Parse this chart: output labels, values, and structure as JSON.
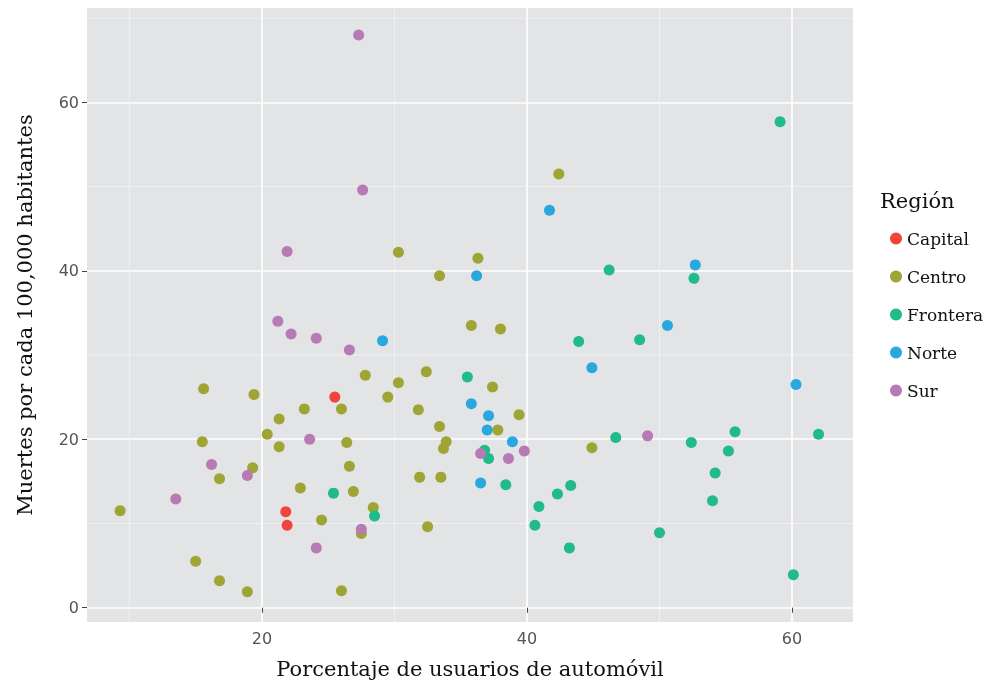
{
  "chart_data": {
    "type": "scatter",
    "xlabel": "Porcentaje de usuarios de automóvil",
    "ylabel": "Muertes por cada 100,000 habitantes",
    "legend_title": "Región",
    "legend": "right",
    "grid": true,
    "marker": "circle",
    "xlim": [
      6.8,
      64.6
    ],
    "ylim": [
      -1.7,
      71.2
    ],
    "xticks": [
      20,
      40,
      60
    ],
    "yticks": [
      0,
      20,
      40,
      60
    ],
    "series": [
      {
        "name": "Capital",
        "color": "#f0453f",
        "x": [
          25.5,
          21.8,
          21.9
        ],
        "values": [
          25.0,
          11.4,
          9.8
        ]
      },
      {
        "name": "Centro",
        "color": "#9fa534",
        "x": [
          9.3,
          15.6,
          15.5,
          19.4,
          20.4,
          21.3,
          21.3,
          19.3,
          16.8,
          15.0,
          16.8,
          18.9,
          23.2,
          26.0,
          27.8,
          30.3,
          30.3,
          29.5,
          26.4,
          26.6,
          26.9,
          22.9,
          24.5,
          27.5,
          28.4,
          26.0,
          32.4,
          31.8,
          33.4,
          33.9,
          33.7,
          31.9,
          33.5,
          32.5,
          33.4,
          35.8,
          36.3,
          38.0,
          37.4,
          37.8,
          39.4,
          42.4,
          44.9
        ],
        "values": [
          11.5,
          26.0,
          19.7,
          25.3,
          20.6,
          22.4,
          19.1,
          16.6,
          15.3,
          5.5,
          3.2,
          1.9,
          23.6,
          23.6,
          27.6,
          42.2,
          26.7,
          25.0,
          19.6,
          16.8,
          13.8,
          14.2,
          10.4,
          8.8,
          11.9,
          2.0,
          28.0,
          23.5,
          21.5,
          19.7,
          18.9,
          15.5,
          15.5,
          9.6,
          39.4,
          33.5,
          41.5,
          33.1,
          26.2,
          21.1,
          22.9,
          51.5,
          19.0
        ]
      },
      {
        "name": "Frontera",
        "color": "#20bb88",
        "x": [
          25.4,
          28.5,
          35.5,
          36.8,
          37.1,
          38.4,
          40.6,
          40.9,
          42.3,
          43.3,
          43.2,
          43.9,
          46.2,
          46.7,
          48.5,
          50.0,
          52.4,
          52.6,
          54.0,
          54.2,
          55.2,
          55.7,
          59.1,
          60.1,
          62.0
        ],
        "values": [
          13.6,
          10.9,
          27.4,
          18.7,
          17.7,
          14.6,
          9.8,
          12.0,
          13.5,
          14.5,
          7.1,
          31.6,
          40.1,
          20.2,
          31.8,
          8.9,
          19.6,
          39.1,
          12.7,
          16.0,
          18.6,
          20.9,
          57.7,
          3.9,
          20.6
        ]
      },
      {
        "name": "Norte",
        "color": "#29a8e0",
        "x": [
          29.1,
          36.2,
          35.8,
          37.1,
          37.0,
          38.9,
          36.5,
          41.7,
          44.9,
          50.6,
          52.7,
          60.3
        ],
        "values": [
          31.7,
          39.4,
          24.2,
          22.8,
          21.1,
          19.7,
          14.8,
          47.2,
          28.5,
          33.5,
          40.7,
          26.5
        ]
      },
      {
        "name": "Sur",
        "color": "#b87ab5",
        "x": [
          27.3,
          27.6,
          21.9,
          21.2,
          22.2,
          24.1,
          26.6,
          23.6,
          16.2,
          18.9,
          13.5,
          27.5,
          24.1,
          36.5,
          38.6,
          39.8,
          49.1
        ],
        "values": [
          68.0,
          49.6,
          42.3,
          34.0,
          32.5,
          32.0,
          30.6,
          20.0,
          17.0,
          15.7,
          12.9,
          9.3,
          7.1,
          18.3,
          17.7,
          18.6,
          20.4
        ]
      }
    ]
  }
}
